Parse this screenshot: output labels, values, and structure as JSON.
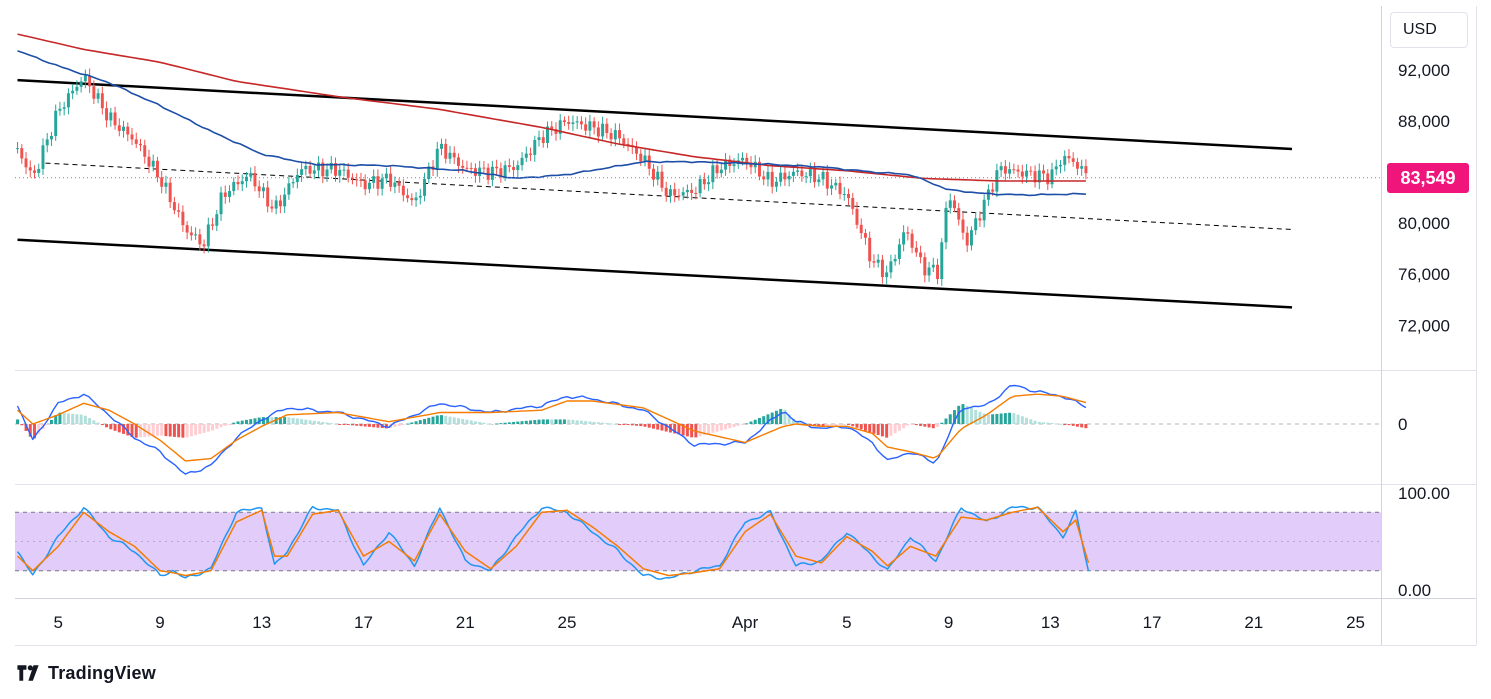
{
  "header": {
    "currency": "USD"
  },
  "price_tag": {
    "value": "83,549",
    "color": "#f0157a"
  },
  "brand": {
    "name": "TradingView",
    "logo": "tradingview-logo-icon"
  },
  "colors": {
    "up": "#26a69a",
    "down": "#ef5350",
    "ma_slow": "#c62828",
    "ma_fast": "#1e4fa8",
    "channel": "#000000",
    "macd": "#2962ff",
    "signal": "#f57c00",
    "stoch_k": "#2196f3",
    "stoch_d": "#f57c00",
    "stoch_band": "#e1ccfa"
  },
  "chart_data": [
    {
      "type": "candlestick",
      "pane": "price",
      "ylim": [
        68500,
        97000
      ],
      "y_ticks": [
        "92,000",
        "88,000",
        "80,000",
        "76,000",
        "72,000"
      ],
      "y_tick_values": [
        92000,
        88000,
        80000,
        76000,
        72000
      ],
      "x_tick_labels": [
        "5",
        "9",
        "13",
        "17",
        "21",
        "25",
        "Apr",
        "5",
        "9",
        "13",
        "17",
        "21",
        "25"
      ],
      "x_tick_days": [
        5,
        9,
        13,
        17,
        21,
        25,
        32,
        36,
        40,
        44,
        48,
        52,
        56
      ],
      "x_domain_days": [
        3.3,
        57
      ],
      "last_price": 83549,
      "overlays": {
        "channel_upper": [
          [
            3.4,
            91200
          ],
          [
            53.5,
            85800
          ]
        ],
        "channel_lower": [
          [
            3.4,
            78700
          ],
          [
            53.5,
            73400
          ]
        ],
        "channel_mid": [
          [
            4.5,
            84700
          ],
          [
            53.5,
            79500
          ]
        ],
        "ma_slow": [
          [
            3.4,
            94800
          ],
          [
            6,
            93600
          ],
          [
            9,
            92600
          ],
          [
            12,
            91100
          ],
          [
            16,
            89900
          ],
          [
            20,
            88900
          ],
          [
            24,
            87500
          ],
          [
            27,
            86200
          ],
          [
            30,
            85200
          ],
          [
            33,
            84500
          ],
          [
            36,
            84100
          ],
          [
            39,
            83500
          ],
          [
            42,
            83300
          ],
          [
            45.5,
            83300
          ]
        ],
        "ma_fast": [
          [
            3.4,
            93500
          ],
          [
            5,
            92300
          ],
          [
            7,
            91000
          ],
          [
            9,
            89200
          ],
          [
            11,
            87200
          ],
          [
            13,
            85400
          ],
          [
            15,
            84600
          ],
          [
            18,
            84500
          ],
          [
            21,
            84100
          ],
          [
            23,
            83500
          ],
          [
            25,
            83800
          ],
          [
            28,
            84800
          ],
          [
            30,
            84800
          ],
          [
            33,
            84600
          ],
          [
            35,
            84400
          ],
          [
            37,
            84000
          ],
          [
            38.5,
            83800
          ],
          [
            40,
            82600
          ],
          [
            41.5,
            82300
          ],
          [
            43,
            82200
          ],
          [
            45.5,
            82300
          ]
        ]
      },
      "ohlc_anchors": [
        [
          3.4,
          85800
        ],
        [
          4,
          83500
        ],
        [
          5,
          88800
        ],
        [
          6,
          91500
        ],
        [
          7,
          88200
        ],
        [
          8,
          86500
        ],
        [
          9,
          83500
        ],
        [
          10,
          79500
        ],
        [
          10.7,
          78300
        ],
        [
          11.5,
          82300
        ],
        [
          12.5,
          83800
        ],
        [
          13.5,
          81000
        ],
        [
          14.5,
          84200
        ],
        [
          16,
          84200
        ],
        [
          17,
          83000
        ],
        [
          18,
          83500
        ],
        [
          19,
          81500
        ],
        [
          20,
          86000
        ],
        [
          21,
          84200
        ],
        [
          22,
          84000
        ],
        [
          23,
          84400
        ],
        [
          24,
          86800
        ],
        [
          25,
          88000
        ],
        [
          26,
          87500
        ],
        [
          27,
          86800
        ],
        [
          28,
          85000
        ],
        [
          29,
          82200
        ],
        [
          30,
          82500
        ],
        [
          31,
          84400
        ],
        [
          32,
          85000
        ],
        [
          33,
          83200
        ],
        [
          34,
          84000
        ],
        [
          35,
          83500
        ],
        [
          36,
          82200
        ],
        [
          37,
          77000
        ],
        [
          37.6,
          76000
        ],
        [
          38.3,
          79500
        ],
        [
          39,
          76500
        ],
        [
          39.6,
          76200
        ],
        [
          40,
          82500
        ],
        [
          40.7,
          78400
        ],
        [
          41.5,
          82000
        ],
        [
          42,
          84300
        ],
        [
          43,
          83900
        ],
        [
          44,
          83600
        ],
        [
          44.5,
          85200
        ],
        [
          45,
          84700
        ],
        [
          45.5,
          83549
        ]
      ]
    },
    {
      "type": "line+histogram",
      "pane": "macd",
      "zero_label": "0",
      "lines": [
        {
          "name": "MACD",
          "values": [
            [
              3.4,
              0.4
            ],
            [
              4,
              -0.35
            ],
            [
              5,
              0.45
            ],
            [
              6,
              0.65
            ],
            [
              7,
              0.2
            ],
            [
              8,
              -0.3
            ],
            [
              9,
              -0.6
            ],
            [
              10,
              -1.1
            ],
            [
              11,
              -0.9
            ],
            [
              12,
              -0.3
            ],
            [
              13,
              0.1
            ],
            [
              14,
              0.35
            ],
            [
              16,
              0.25
            ],
            [
              18,
              -0.05
            ],
            [
              20,
              0.45
            ],
            [
              22,
              0.25
            ],
            [
              24,
              0.4
            ],
            [
              25,
              0.6
            ],
            [
              26,
              0.55
            ],
            [
              28,
              0.3
            ],
            [
              30,
              -0.45
            ],
            [
              32,
              -0.4
            ],
            [
              33.5,
              0.3
            ],
            [
              34,
              0.05
            ],
            [
              35,
              -0.1
            ],
            [
              36,
              -0.05
            ],
            [
              37,
              -0.4
            ],
            [
              37.6,
              -0.8
            ],
            [
              38.5,
              -0.6
            ],
            [
              39.5,
              -0.85
            ],
            [
              40.5,
              0.35
            ],
            [
              41.5,
              0.4
            ],
            [
              42.5,
              0.85
            ],
            [
              43.5,
              0.7
            ],
            [
              44.5,
              0.6
            ],
            [
              45.5,
              0.35
            ]
          ]
        },
        {
          "name": "Signal",
          "values": [
            [
              3.4,
              0.3
            ],
            [
              4,
              0.0
            ],
            [
              5,
              0.2
            ],
            [
              6,
              0.45
            ],
            [
              7,
              0.3
            ],
            [
              8,
              0.0
            ],
            [
              9,
              -0.35
            ],
            [
              10,
              -0.8
            ],
            [
              11,
              -0.75
            ],
            [
              12,
              -0.35
            ],
            [
              13,
              -0.05
            ],
            [
              14,
              0.2
            ],
            [
              16,
              0.25
            ],
            [
              18,
              0.05
            ],
            [
              20,
              0.25
            ],
            [
              22,
              0.25
            ],
            [
              24,
              0.3
            ],
            [
              25,
              0.5
            ],
            [
              26,
              0.5
            ],
            [
              28,
              0.35
            ],
            [
              30,
              -0.15
            ],
            [
              32,
              -0.4
            ],
            [
              33.5,
              -0.05
            ],
            [
              34,
              0.0
            ],
            [
              35,
              -0.05
            ],
            [
              36,
              -0.05
            ],
            [
              37,
              -0.2
            ],
            [
              37.6,
              -0.5
            ],
            [
              38.5,
              -0.6
            ],
            [
              39.5,
              -0.75
            ],
            [
              40.5,
              -0.1
            ],
            [
              41.5,
              0.2
            ],
            [
              42.5,
              0.6
            ],
            [
              43.5,
              0.65
            ],
            [
              44.5,
              0.6
            ],
            [
              45.5,
              0.45
            ]
          ]
        }
      ],
      "ylim": [
        -1.3,
        1.15
      ]
    },
    {
      "type": "line",
      "pane": "stochastic_rsi",
      "ylim": [
        -8,
        108
      ],
      "y_ticks": [
        "100.00",
        "0.00"
      ],
      "y_tick_values": [
        100,
        0
      ],
      "band": [
        20,
        80
      ],
      "lines": [
        {
          "name": "K",
          "values": [
            [
              3.4,
              40
            ],
            [
              4,
              15
            ],
            [
              5,
              55
            ],
            [
              6,
              85
            ],
            [
              7,
              55
            ],
            [
              8,
              40
            ],
            [
              9,
              15
            ],
            [
              9.5,
              20
            ],
            [
              10,
              12
            ],
            [
              11,
              22
            ],
            [
              12,
              80
            ],
            [
              13,
              85
            ],
            [
              13.5,
              25
            ],
            [
              14,
              40
            ],
            [
              15,
              85
            ],
            [
              16,
              82
            ],
            [
              17,
              25
            ],
            [
              18,
              60
            ],
            [
              19,
              25
            ],
            [
              20,
              85
            ],
            [
              21,
              30
            ],
            [
              22,
              20
            ],
            [
              23,
              55
            ],
            [
              24,
              85
            ],
            [
              25,
              80
            ],
            [
              26,
              60
            ],
            [
              27,
              40
            ],
            [
              28,
              15
            ],
            [
              29,
              12
            ],
            [
              30,
              20
            ],
            [
              31,
              25
            ],
            [
              32,
              70
            ],
            [
              33,
              80
            ],
            [
              34,
              25
            ],
            [
              35,
              30
            ],
            [
              36,
              60
            ],
            [
              37,
              35
            ],
            [
              37.6,
              20
            ],
            [
              38.5,
              55
            ],
            [
              39.5,
              30
            ],
            [
              40.5,
              85
            ],
            [
              41.5,
              70
            ],
            [
              42.5,
              85
            ],
            [
              43.5,
              85
            ],
            [
              44.5,
              55
            ],
            [
              45,
              80
            ],
            [
              45.5,
              20
            ]
          ]
        },
        {
          "name": "D",
          "values": [
            [
              3.4,
              35
            ],
            [
              4,
              20
            ],
            [
              5,
              45
            ],
            [
              6,
              80
            ],
            [
              7,
              60
            ],
            [
              8,
              45
            ],
            [
              9,
              20
            ],
            [
              9.5,
              18
            ],
            [
              10,
              15
            ],
            [
              11,
              20
            ],
            [
              12,
              70
            ],
            [
              13,
              82
            ],
            [
              13.5,
              35
            ],
            [
              14,
              35
            ],
            [
              15,
              78
            ],
            [
              16,
              82
            ],
            [
              17,
              35
            ],
            [
              18,
              50
            ],
            [
              19,
              30
            ],
            [
              20,
              78
            ],
            [
              21,
              40
            ],
            [
              22,
              22
            ],
            [
              23,
              45
            ],
            [
              24,
              80
            ],
            [
              25,
              82
            ],
            [
              26,
              65
            ],
            [
              27,
              45
            ],
            [
              28,
              22
            ],
            [
              29,
              15
            ],
            [
              30,
              18
            ],
            [
              31,
              22
            ],
            [
              32,
              60
            ],
            [
              33,
              78
            ],
            [
              34,
              35
            ],
            [
              35,
              28
            ],
            [
              36,
              55
            ],
            [
              37,
              40
            ],
            [
              37.6,
              25
            ],
            [
              38.5,
              45
            ],
            [
              39.5,
              35
            ],
            [
              40.5,
              75
            ],
            [
              41.5,
              72
            ],
            [
              42.5,
              80
            ],
            [
              43.5,
              85
            ],
            [
              44.5,
              60
            ],
            [
              45,
              72
            ],
            [
              45.5,
              28
            ]
          ]
        }
      ]
    }
  ]
}
